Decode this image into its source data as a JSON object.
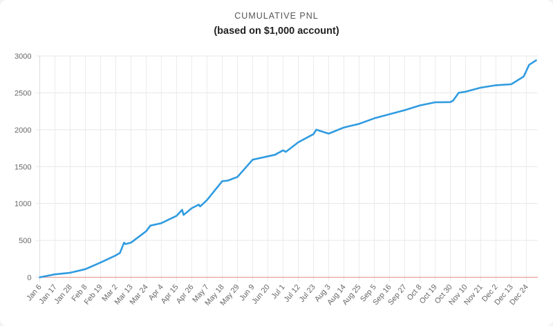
{
  "chart_data": {
    "type": "line",
    "title": "CUMULATIVE PNL",
    "subtitle": "(based on $1,000 account)",
    "xlabel": "",
    "ylabel": "",
    "ylim": [
      0,
      3000
    ],
    "yticks": [
      0,
      500,
      1000,
      1500,
      2000,
      2500,
      3000
    ],
    "grid": true,
    "x_unit": "days since Jan 6",
    "xlim": [
      0,
      359
    ],
    "xtick_step_days": 11,
    "xticks": [
      "Jan 6",
      "Jan 17",
      "Jan 28",
      "Feb 8",
      "Feb 19",
      "Mar 2",
      "Mar 13",
      "Mar 24",
      "Apr 4",
      "Apr 15",
      "Apr 26",
      "May 7",
      "May 18",
      "May 29",
      "Jun 9",
      "Jun 20",
      "Jul 1",
      "Jul 12",
      "Jul 23",
      "Aug 3",
      "Aug 14",
      "Aug 25",
      "Sep 5",
      "Sep 16",
      "Sep 27",
      "Oct 8",
      "Oct 19",
      "Oct 30",
      "Nov 10",
      "Nov 21",
      "Dec 2",
      "Dec 13",
      "Dec 24"
    ],
    "series": [
      {
        "name": "Cumulative PnL",
        "color": "#2f9be0",
        "x": [
          0,
          11,
          22,
          33,
          44,
          55,
          58,
          61,
          62,
          66,
          77,
          80,
          88,
          99,
          103,
          104,
          110,
          115,
          116,
          121,
          132,
          136,
          143,
          154,
          165,
          170,
          176,
          178,
          187,
          198,
          200,
          209,
          220,
          231,
          242,
          253,
          264,
          275,
          286,
          297,
          299,
          303,
          308,
          319,
          330,
          341,
          350,
          354,
          359
        ],
        "y": [
          0,
          40,
          62,
          110,
          200,
          297,
          330,
          470,
          450,
          470,
          625,
          700,
          734,
          834,
          915,
          845,
          937,
          985,
          960,
          1047,
          1303,
          1310,
          1360,
          1594,
          1640,
          1660,
          1720,
          1700,
          1830,
          1940,
          2000,
          1947,
          2030,
          2080,
          2155,
          2210,
          2265,
          2330,
          2372,
          2375,
          2395,
          2500,
          2515,
          2570,
          2603,
          2616,
          2720,
          2880,
          2940
        ]
      }
    ],
    "baseline": {
      "value": 0,
      "color": "#e8a09a"
    }
  }
}
